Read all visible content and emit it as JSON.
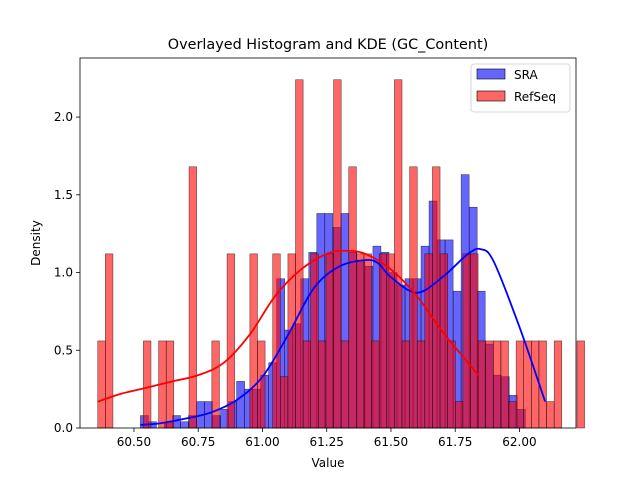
{
  "chart_data": {
    "type": "histogram",
    "title": "Overlayed Histogram and KDE (GC_Content)",
    "xlabel": "Value",
    "ylabel": "Density",
    "xlim": [
      60.29,
      62.22
    ],
    "ylim": [
      0,
      2.38
    ],
    "xticks": [
      60.5,
      60.75,
      61.0,
      61.25,
      61.5,
      61.75,
      62.0
    ],
    "xtick_labels": [
      "60.50",
      "60.75",
      "61.00",
      "61.25",
      "61.50",
      "61.75",
      "62.00"
    ],
    "yticks": [
      0,
      0.5,
      1.0,
      1.5,
      2.0
    ],
    "ytick_labels": [
      "0.0",
      "0.5",
      "1.0",
      "1.5",
      "2.0"
    ],
    "legend_position": "top-right",
    "grid": false,
    "series": [
      {
        "name": "SRA",
        "color": "#0000ff",
        "bin_start": 60.525,
        "bin_width": 0.0312,
        "values": [
          0.08,
          0.04,
          0.0,
          0.04,
          0.08,
          0.04,
          0.08,
          0.17,
          0.17,
          0.08,
          0.12,
          0.17,
          0.3,
          0.25,
          0.25,
          0.34,
          0.42,
          0.96,
          0.63,
          0.67,
          0.96,
          1.13,
          1.38,
          1.38,
          1.29,
          1.38,
          1.13,
          1.08,
          1.04,
          1.17,
          1.13,
          1.0,
          0.92,
          0.96,
          0.96,
          1.17,
          1.46,
          1.21,
          1.21,
          0.88,
          1.63,
          1.42,
          0.88,
          0.54,
          0.34,
          0.33,
          0.21,
          0.12
        ],
        "kde_x": [
          60.525,
          60.6,
          60.7,
          60.8,
          60.9,
          61.0,
          61.1,
          61.2,
          61.3,
          61.4,
          61.45,
          61.5,
          61.6,
          61.7,
          61.8,
          61.85,
          61.9,
          62.0,
          62.1
        ],
        "kde_y": [
          0.02,
          0.03,
          0.06,
          0.1,
          0.18,
          0.33,
          0.6,
          0.9,
          1.04,
          1.08,
          1.06,
          0.97,
          0.87,
          0.97,
          1.12,
          1.15,
          1.07,
          0.65,
          0.17
        ]
      },
      {
        "name": "RefSeq",
        "color": "#ff0000",
        "bin_start": 60.359,
        "bin_width": 0.0296,
        "values": [
          0.56,
          1.12,
          0.0,
          0.0,
          0.0,
          0.0,
          0.56,
          0.0,
          0.56,
          0.56,
          0.0,
          0.0,
          1.68,
          0.0,
          0.0,
          0.56,
          0.0,
          1.12,
          0.0,
          0.0,
          1.12,
          0.56,
          0.0,
          1.12,
          0.33,
          1.12,
          2.24,
          0.56,
          1.12,
          0.56,
          1.12,
          2.24,
          0.56,
          1.68,
          1.12,
          1.12,
          0.56,
          1.12,
          1.12,
          2.24,
          0.56,
          1.68,
          0.56,
          1.12,
          1.68,
          1.12,
          0.56,
          0.17,
          1.12,
          1.12,
          0.56,
          0.56,
          0.56,
          0.56,
          0.17,
          0.56,
          0.56,
          0.56,
          0.56,
          0.17,
          0.56,
          0.0,
          0.0,
          0.56
        ],
        "kde_x": [
          60.36,
          60.45,
          60.55,
          60.65,
          60.75,
          60.85,
          60.95,
          61.05,
          61.15,
          61.25,
          61.32,
          61.4,
          61.5,
          61.6,
          61.7,
          61.8,
          61.84
        ],
        "kde_y": [
          0.17,
          0.22,
          0.26,
          0.3,
          0.34,
          0.42,
          0.6,
          0.85,
          1.02,
          1.12,
          1.14,
          1.12,
          1.02,
          0.85,
          0.62,
          0.42,
          0.34
        ]
      }
    ]
  }
}
